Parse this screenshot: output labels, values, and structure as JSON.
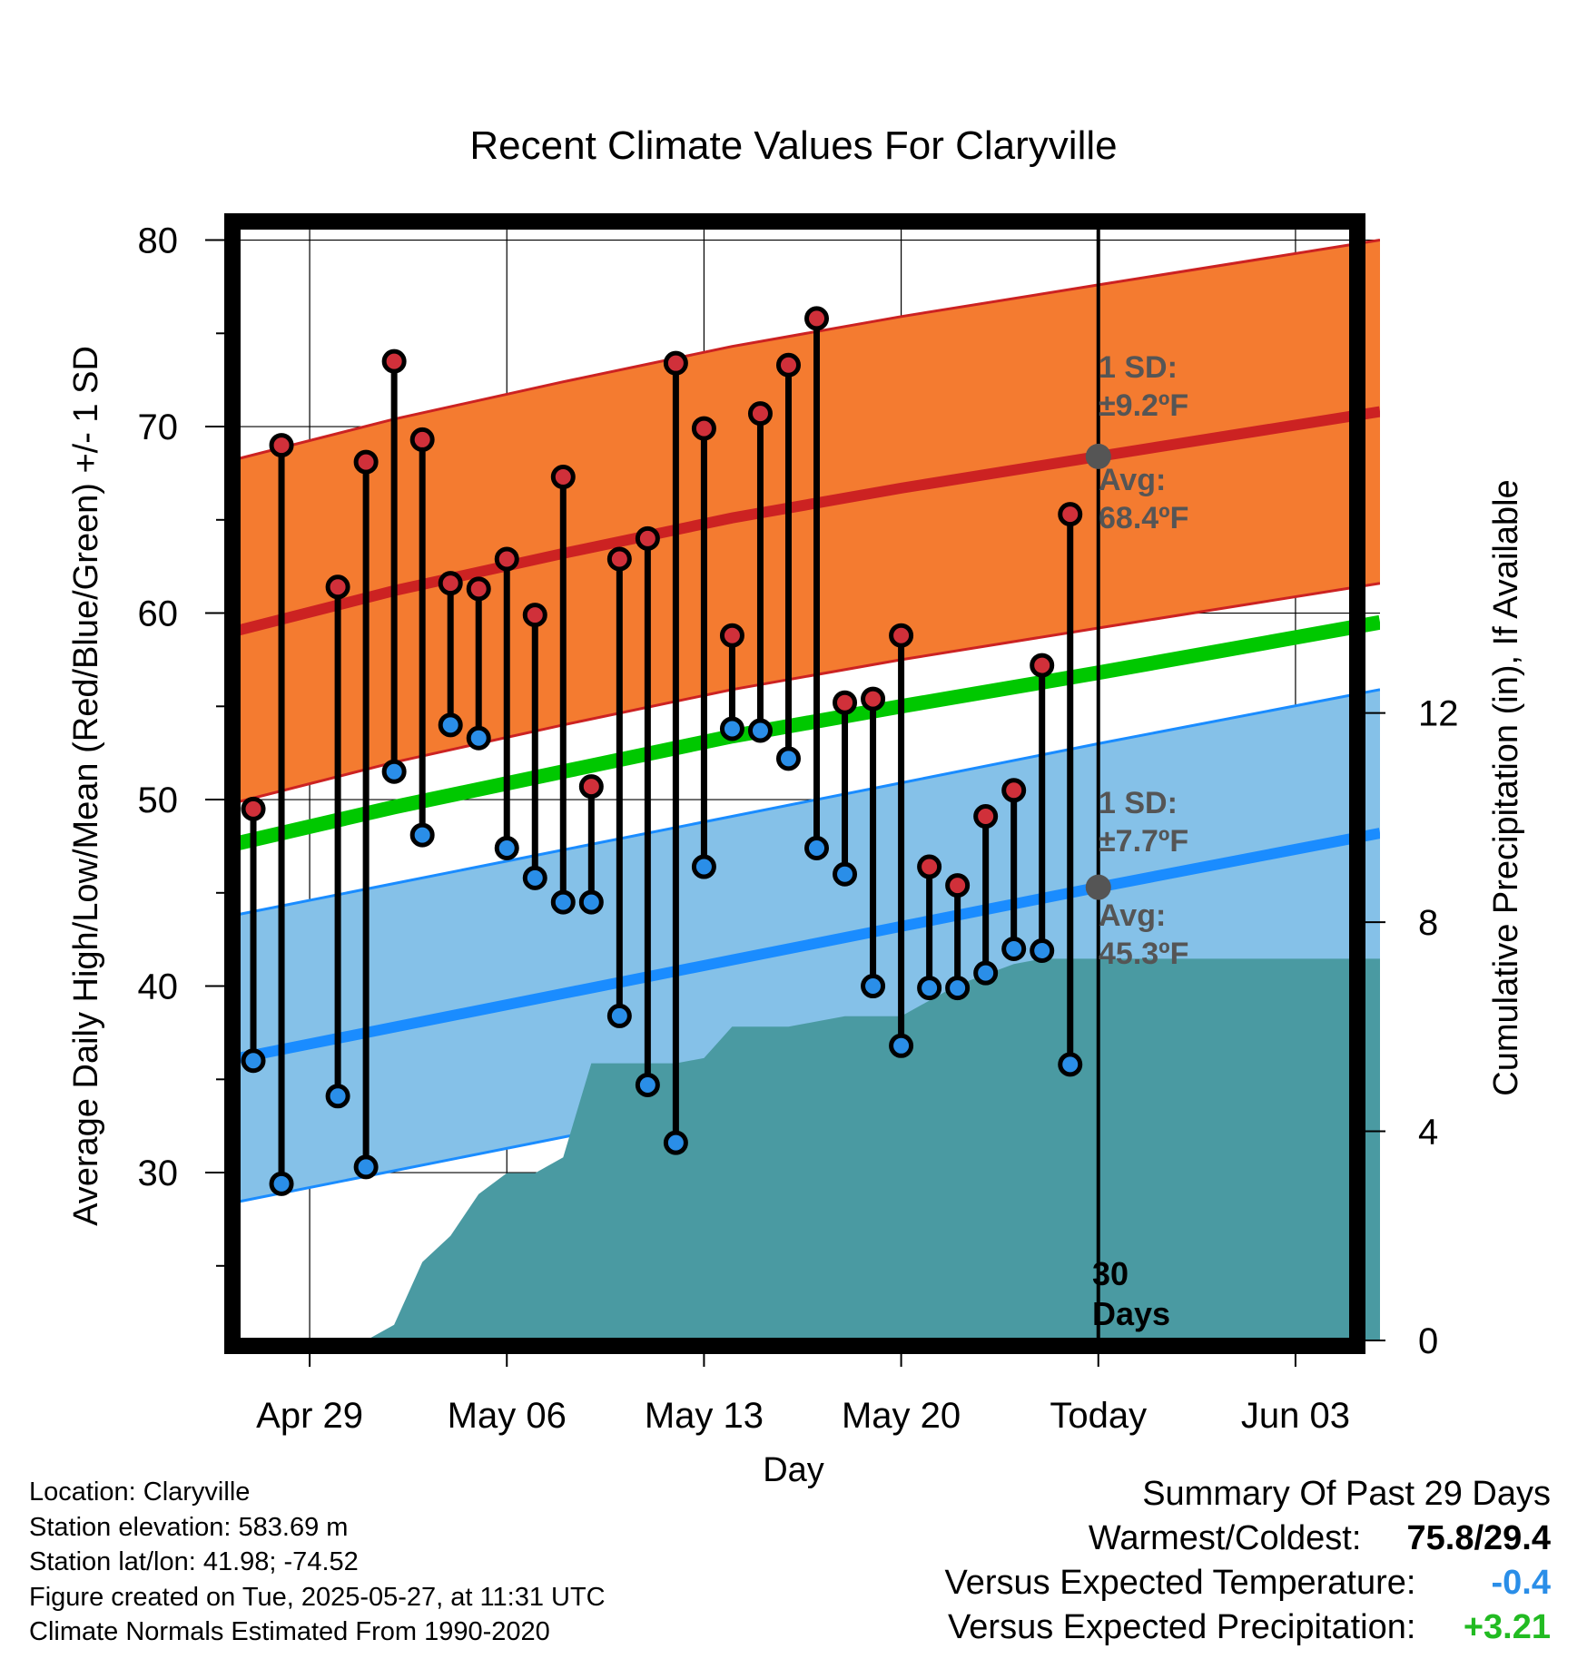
{
  "chart_data": {
    "type": "line",
    "title": "Recent Climate Values For Claryville",
    "xlabel": "Day",
    "ylabel": "Average Daily High/Low/Mean (Red/Blue/Green) +/- 1 SD",
    "y2label": "Cumulative Precipitation (in), If Available",
    "xlim": [
      "2025-04-26",
      "2025-06-06"
    ],
    "ylim": [
      21,
      81
    ],
    "y2lim": [
      -0.0,
      21.4
    ],
    "x_ticks": [
      "Apr 29",
      "May 06",
      "May 13",
      "May 20",
      "Today",
      "Jun 03"
    ],
    "x_tick_dates": [
      "2025-04-29",
      "2025-05-06",
      "2025-05-13",
      "2025-05-20",
      "2025-05-27",
      "2025-06-03"
    ],
    "y_ticks": [
      30,
      40,
      50,
      60,
      70,
      80
    ],
    "y2_ticks": [
      0,
      4,
      8,
      12
    ],
    "grid": true,
    "today_line": "2025-05-27",
    "normals": {
      "dates": [
        "2025-04-26",
        "2025-05-02",
        "2025-05-08",
        "2025-05-14",
        "2025-05-20",
        "2025-05-27",
        "2025-06-06"
      ],
      "high_avg": [
        58.9,
        61.2,
        63.2,
        65.1,
        66.7,
        68.4,
        70.8
      ],
      "high_sd": 9.2,
      "low_avg": [
        36.0,
        37.8,
        39.6,
        41.4,
        43.2,
        45.3,
        48.2
      ],
      "low_sd": 7.7,
      "mean": [
        47.5,
        49.6,
        51.5,
        53.4,
        55.0,
        56.8,
        59.5
      ]
    },
    "series": [
      {
        "name": "High",
        "dates": [
          "2025-04-27",
          "2025-04-28",
          "2025-04-30",
          "2025-05-01",
          "2025-05-02",
          "2025-05-03",
          "2025-05-04",
          "2025-05-05",
          "2025-05-06",
          "2025-05-07",
          "2025-05-08",
          "2025-05-09",
          "2025-05-10",
          "2025-05-11",
          "2025-05-12",
          "2025-05-13",
          "2025-05-14",
          "2025-05-15",
          "2025-05-16",
          "2025-05-17",
          "2025-05-18",
          "2025-05-19",
          "2025-05-20",
          "2025-05-21",
          "2025-05-22",
          "2025-05-23",
          "2025-05-24",
          "2025-05-25",
          "2025-05-26"
        ],
        "values": [
          49.5,
          69.0,
          61.4,
          68.1,
          73.5,
          69.3,
          61.6,
          61.3,
          62.9,
          59.9,
          67.3,
          50.7,
          62.9,
          64.0,
          73.4,
          69.9,
          58.8,
          70.7,
          73.3,
          75.8,
          55.2,
          55.4,
          58.8,
          46.4,
          45.4,
          49.1,
          50.5,
          57.2,
          65.3
        ]
      },
      {
        "name": "Low",
        "dates": [
          "2025-04-27",
          "2025-04-28",
          "2025-04-30",
          "2025-05-01",
          "2025-05-02",
          "2025-05-03",
          "2025-05-04",
          "2025-05-05",
          "2025-05-06",
          "2025-05-07",
          "2025-05-08",
          "2025-05-09",
          "2025-05-10",
          "2025-05-11",
          "2025-05-12",
          "2025-05-13",
          "2025-05-14",
          "2025-05-15",
          "2025-05-16",
          "2025-05-17",
          "2025-05-18",
          "2025-05-19",
          "2025-05-20",
          "2025-05-21",
          "2025-05-22",
          "2025-05-23",
          "2025-05-24",
          "2025-05-25",
          "2025-05-26"
        ],
        "values": [
          36.0,
          29.4,
          34.1,
          30.3,
          51.5,
          48.1,
          54.0,
          53.3,
          47.4,
          45.8,
          44.5,
          44.5,
          38.4,
          34.7,
          31.6,
          46.4,
          53.8,
          53.7,
          52.2,
          47.4,
          46.0,
          40.0,
          36.8,
          39.9,
          39.9,
          40.7,
          42.0,
          41.9,
          35.8
        ]
      },
      {
        "name": "Cumulative Precipitation",
        "dates": [
          "2025-04-26",
          "2025-05-01",
          "2025-05-02",
          "2025-05-03",
          "2025-05-04",
          "2025-05-05",
          "2025-05-06",
          "2025-05-07",
          "2025-05-08",
          "2025-05-09",
          "2025-05-10",
          "2025-05-11",
          "2025-05-12",
          "2025-05-13",
          "2025-05-14",
          "2025-05-15",
          "2025-05-16",
          "2025-05-17",
          "2025-05-18",
          "2025-05-19",
          "2025-05-20",
          "2025-05-21",
          "2025-05-22",
          "2025-05-23",
          "2025-05-24",
          "2025-05-25",
          "2025-06-06"
        ],
        "values": [
          0,
          0,
          0.3,
          1.5,
          2.0,
          2.8,
          3.2,
          3.2,
          3.5,
          5.3,
          5.3,
          5.3,
          5.3,
          5.4,
          6.0,
          6.0,
          6.0,
          6.1,
          6.2,
          6.2,
          6.2,
          6.5,
          6.8,
          7.0,
          7.2,
          7.3,
          7.3
        ]
      }
    ],
    "annotations": {
      "high_sd_label": "1 SD:",
      "high_sd_value": "±9.2ºF",
      "high_avg_label": "Avg:",
      "high_avg_value": "68.4ºF",
      "low_sd_label": "1 SD:",
      "low_sd_value": "±7.7ºF",
      "low_avg_label": "Avg:",
      "low_avg_value": "45.3ºF",
      "days_line1": "30",
      "days_line2": "Days"
    },
    "colors": {
      "high_band": "#f47b30",
      "high_line": "#cc2222",
      "low_band": "#85c1e8",
      "low_line": "#1a8cff",
      "mean_line": "#00c800",
      "precip": "#4a9aa2",
      "high_marker": "#d0303a",
      "low_marker": "#2a8ee8",
      "marker_today": "#555555"
    }
  },
  "info": {
    "location": "Location: Claryville",
    "elevation": "Station elevation: 583.69 m",
    "latlon": "Station lat/lon: 41.98; -74.52",
    "created": "Figure created on Tue, 2025-05-27, at 11:31 UTC",
    "normals": "Climate Normals Estimated From 1990-2020"
  },
  "summary": {
    "title": "Summary Of Past 29 Days",
    "warm_cold_label": "Warmest/Coldest:",
    "warm_value": "75.8",
    "slash": "/",
    "cold_value": "29.4",
    "temp_label": "Versus Expected Temperature:",
    "temp_value": "-0.4",
    "temp_color": "#2a8ee8",
    "precip_label": "Versus Expected Precipitation:",
    "precip_value": "+3.21",
    "precip_color": "#22bb22"
  }
}
